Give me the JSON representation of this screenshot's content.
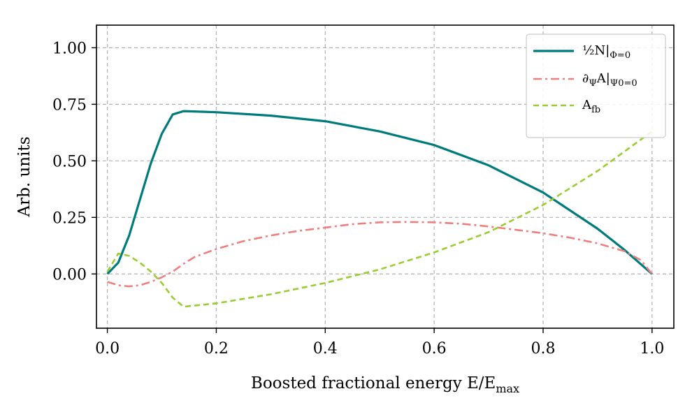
{
  "chart_data": {
    "type": "line",
    "title": "",
    "xlabel": "Boosted fractional energy E/E",
    "xlabel_sub": "max",
    "ylabel": "Arb. units",
    "xlim": [
      -0.02,
      1.04
    ],
    "ylim": [
      -0.24,
      1.1
    ],
    "xticks": [
      0.0,
      0.2,
      0.4,
      0.6,
      0.8,
      1.0
    ],
    "xtick_labels": [
      "0.0",
      "0.2",
      "0.4",
      "0.6",
      "0.8",
      "1.0"
    ],
    "yticks": [
      0.0,
      0.25,
      0.5,
      0.75,
      1.0
    ],
    "ytick_labels": [
      "0.00",
      "0.25",
      "0.50",
      "0.75",
      "1.00"
    ],
    "grid": true,
    "legend_position": "top-right",
    "series": [
      {
        "label_main": "½N|",
        "label_sub": "Φ=0",
        "color": "#007b7b",
        "style": "solid",
        "x": [
          0.0,
          0.02,
          0.04,
          0.06,
          0.08,
          0.1,
          0.12,
          0.14,
          0.2,
          0.3,
          0.4,
          0.5,
          0.6,
          0.7,
          0.8,
          0.9,
          0.95,
          1.0
        ],
        "y": [
          0.0,
          0.05,
          0.17,
          0.33,
          0.49,
          0.62,
          0.705,
          0.72,
          0.715,
          0.7,
          0.675,
          0.63,
          0.57,
          0.48,
          0.36,
          0.2,
          0.105,
          0.0
        ]
      },
      {
        "label_main": "∂",
        "label_sub_1": "Ψ",
        "label_mid": "A|",
        "label_sub": "Ψ0=0",
        "color": "#ef7f7f",
        "style": "dashdot",
        "x": [
          0.0,
          0.02,
          0.04,
          0.06,
          0.08,
          0.1,
          0.12,
          0.14,
          0.16,
          0.2,
          0.25,
          0.3,
          0.35,
          0.4,
          0.45,
          0.5,
          0.55,
          0.6,
          0.65,
          0.7,
          0.75,
          0.8,
          0.85,
          0.9,
          0.95,
          0.98,
          1.0
        ],
        "y": [
          -0.035,
          -0.05,
          -0.055,
          -0.05,
          -0.035,
          -0.015,
          0.01,
          0.045,
          0.075,
          0.11,
          0.145,
          0.17,
          0.19,
          0.205,
          0.22,
          0.228,
          0.23,
          0.228,
          0.222,
          0.21,
          0.195,
          0.18,
          0.16,
          0.135,
          0.1,
          0.06,
          0.0
        ]
      },
      {
        "label_main": "A",
        "label_sub": "fb",
        "color": "#9acd32",
        "style": "dashed",
        "x": [
          0.0,
          0.02,
          0.04,
          0.06,
          0.08,
          0.1,
          0.12,
          0.14,
          0.2,
          0.3,
          0.4,
          0.5,
          0.6,
          0.7,
          0.8,
          0.9,
          1.0
        ],
        "y": [
          0.01,
          0.09,
          0.08,
          0.05,
          0.01,
          -0.04,
          -0.105,
          -0.145,
          -0.13,
          -0.09,
          -0.04,
          0.02,
          0.095,
          0.185,
          0.305,
          0.455,
          0.63
        ]
      }
    ]
  }
}
